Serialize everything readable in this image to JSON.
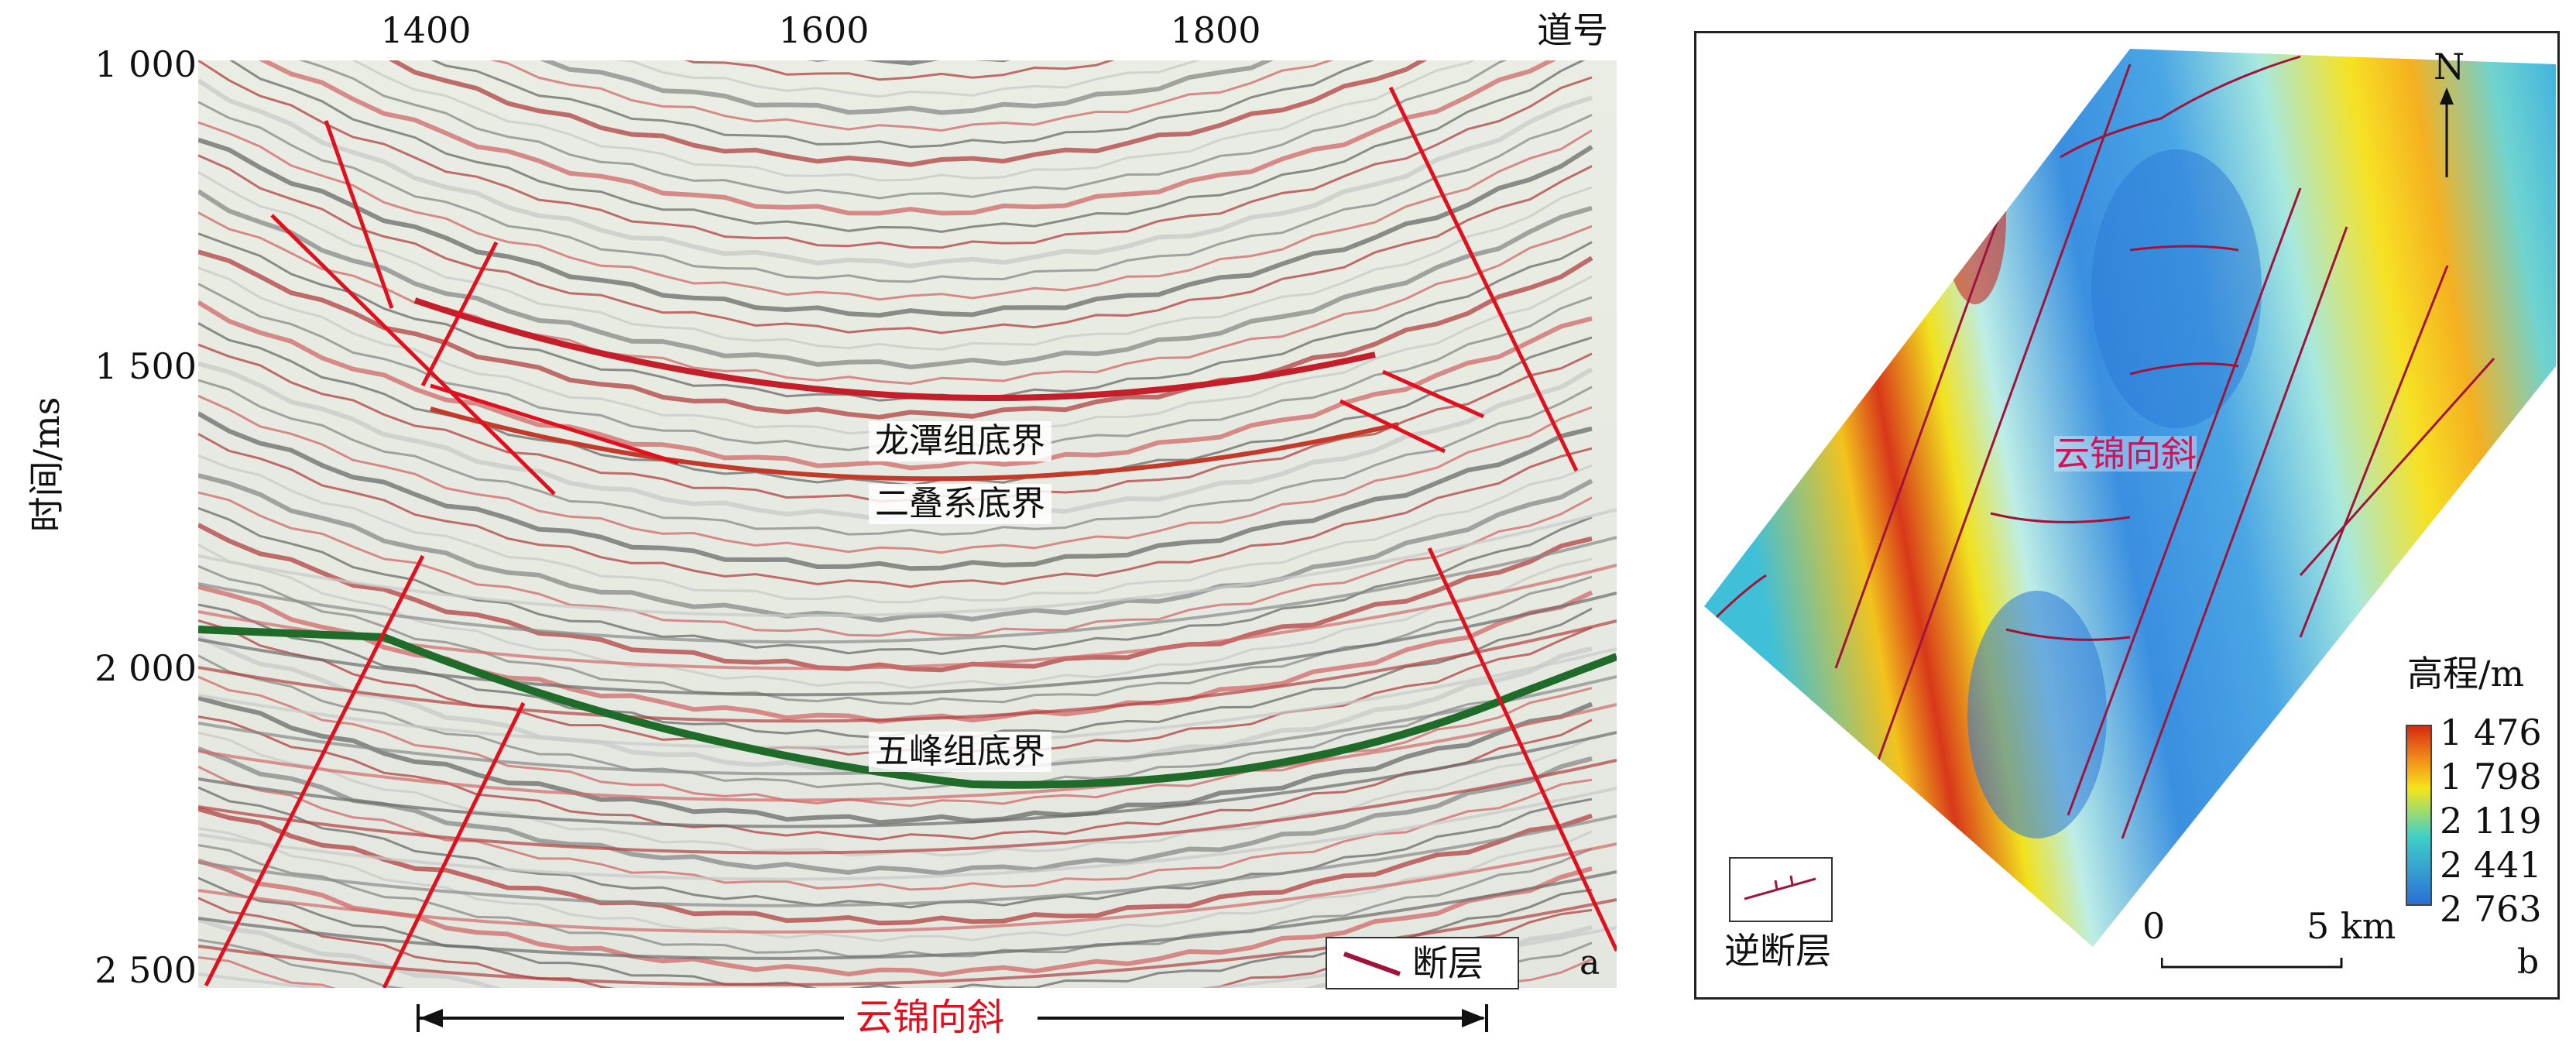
{
  "panel_a": {
    "x_axis_label": "道号",
    "x_ticks": [
      "1400",
      "1600",
      "1800"
    ],
    "y_axis_label": "时间/ms",
    "y_ticks": [
      "1 000",
      "1 500",
      "2 000",
      "2 500"
    ],
    "horizons": [
      "龙潭组底界",
      "二叠系底界",
      "五峰组底界"
    ],
    "legend_label": "断层",
    "panel_letter": "a",
    "bottom_label": "云锦向斜",
    "colors": {
      "fault": "#e0101e",
      "horizon_wufeng": "#1f6b2a",
      "horizon": "#cc2a2a",
      "label_red": "#e0101e"
    }
  },
  "panel_b": {
    "north_label": "N",
    "syncline_label": "云锦向斜",
    "colorbar_title": "高程/m",
    "colorbar_ticks": [
      "1 476",
      "1 798",
      "2 119",
      "2 441",
      "2 763"
    ],
    "scale_zero": "0",
    "scale_end": "5 km",
    "legend_label": "逆断层",
    "panel_letter": "b",
    "colors": {
      "fault": "#a0133a",
      "colorbar": [
        "#d42a12",
        "#f28a1a",
        "#f5e51a",
        "#3fd0c8",
        "#2a6fd6"
      ]
    }
  }
}
